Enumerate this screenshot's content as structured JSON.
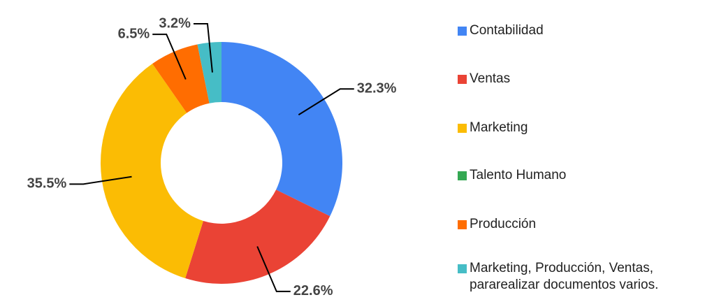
{
  "chart_data": {
    "type": "donut",
    "categories": [
      "Contabilidad",
      "Ventas",
      "Marketing",
      "Talento Humano",
      "Producción",
      "Marketing, Producción, Ventas, pararealizar documentos varios."
    ],
    "values": [
      32.3,
      22.6,
      35.5,
      0,
      6.5,
      3.2
    ],
    "value_labels": [
      "32.3%",
      "22.6%",
      "35.5%",
      null,
      "6.5%",
      "3.2%"
    ],
    "colors": [
      "#4285f4",
      "#ea4335",
      "#fbbc04",
      "#34a853",
      "#ff6d01",
      "#46bdc6"
    ],
    "legend": "right"
  }
}
